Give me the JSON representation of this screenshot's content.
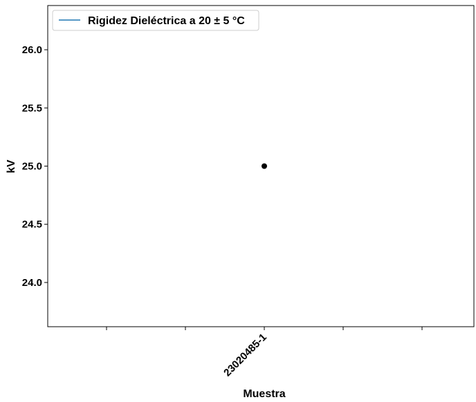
{
  "chart_data": {
    "type": "scatter",
    "title": "",
    "xlabel": "Muestra",
    "ylabel": "kV",
    "categories": [
      "23020485-1"
    ],
    "ylim": [
      23.62,
      26.38
    ],
    "yticks": [
      "24.0",
      "24.5",
      "25.0",
      "25.5",
      "26.0"
    ],
    "legend": {
      "placement": "top-left",
      "label": "Rigidez Dieléctrica a 20 ± 5 °C"
    },
    "series": [
      {
        "name": "Rigidez Dieléctrica a 20 ± 5 °C",
        "x": [
          "23020485-1"
        ],
        "values": [
          25.0
        ],
        "marker_color": "#000000",
        "legend_line_color": "#1f77b4"
      }
    ],
    "grid": false
  }
}
